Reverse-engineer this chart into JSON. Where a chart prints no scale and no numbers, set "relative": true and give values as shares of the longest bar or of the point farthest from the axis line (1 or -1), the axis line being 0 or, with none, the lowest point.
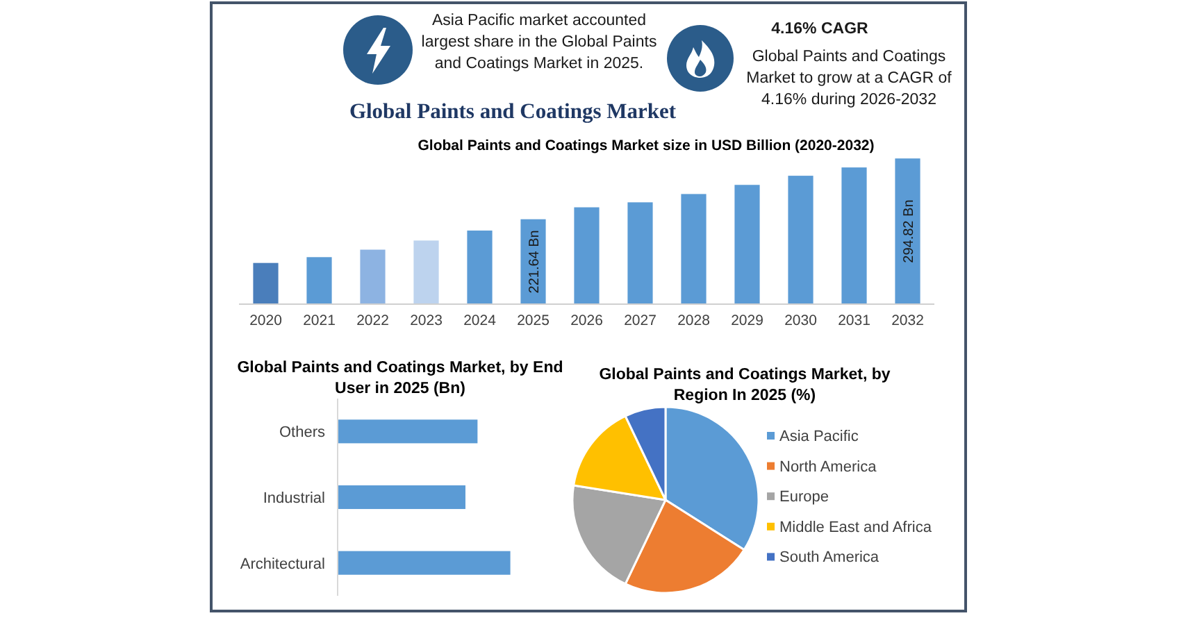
{
  "chart_data": [
    {
      "type": "other",
      "title": "Global Paints and Coatings Market",
      "annotations": [
        "Asia Pacific market accounted largest share in the Global Paints and Coatings Market in 2025.",
        "4.16% CAGR",
        "Global Paints and Coatings Market to grow at a CAGR of 4.16% during 2026-2032"
      ]
    },
    {
      "type": "bar",
      "title": "Global Paints and Coatings Market size in USD Billion (2020-2032)",
      "categories": [
        "2020",
        "2021",
        "2022",
        "2023",
        "2024",
        "2025",
        "2026",
        "2027",
        "2028",
        "2029",
        "2030",
        "2031",
        "2032"
      ],
      "values": [
        169,
        176,
        185,
        196,
        208,
        221.64,
        236,
        242,
        252,
        263,
        274,
        284,
        294.82
      ],
      "colors": [
        "#4a7ebb",
        "#5b9bd5",
        "#8db3e2",
        "#bdd3ee",
        "#5b9bd5",
        "#5b9bd5",
        "#5b9bd5",
        "#5b9bd5",
        "#5b9bd5",
        "#5b9bd5",
        "#5b9bd5",
        "#5b9bd5",
        "#5b9bd5"
      ],
      "value_labels": [
        null,
        null,
        null,
        null,
        null,
        "221.64 Bn",
        null,
        null,
        null,
        null,
        null,
        null,
        "294.82 Bn"
      ],
      "ylim": [
        119.4,
        300
      ],
      "tick_labels": "x"
    },
    {
      "type": "bar",
      "orientation": "horizontal",
      "relative": true,
      "title": "Global Paints and Coatings Market, by End User in 2025 (Bn)",
      "categories": [
        "Others",
        "Industrial",
        "Architectural"
      ],
      "values": [
        0.81,
        0.74,
        1
      ],
      "color": "#5b9bd5"
    },
    {
      "type": "pie",
      "title": "Global Paints and Coatings Market, by Region In 2025 (%)",
      "categories": [
        "Asia Pacific",
        "North America",
        "Europe",
        "Middle East and Africa",
        "South America"
      ],
      "values": [
        34,
        23.1,
        20.4,
        15.4,
        7.1
      ],
      "colors": [
        "#5b9bd5",
        "#ed7d31",
        "#a5a5a5",
        "#ffc000",
        "#4472c4"
      ],
      "legend": "right"
    }
  ]
}
